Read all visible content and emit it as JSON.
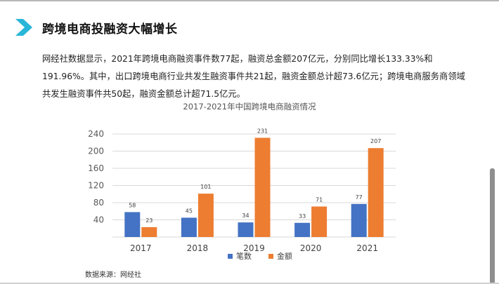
{
  "heading": {
    "title": "跨境电商投融资大幅增长",
    "icon": "chevron-right-icon",
    "icon_color": "#29b6d8"
  },
  "paragraph": {
    "text": "网经社数据显示，2021年跨境电商融资事件数77起，融资总金额207亿元，分别同比增长133.33%和191.96%。其中，出口跨境电商行业共发生融资事件共21起，融资金额总计超73.6亿元；跨境电商服务商领域共发生融资事件共50起，融资金额总计超71.5亿元。"
  },
  "source": {
    "text": "数据来源：网经社"
  },
  "chart_data": {
    "type": "bar",
    "title": "2017-2021年中国跨境电商融资情况",
    "categories": [
      "2017",
      "2018",
      "2019",
      "2020",
      "2021"
    ],
    "series": [
      {
        "name": "笔数",
        "values": [
          58,
          45,
          34,
          33,
          77
        ],
        "color": "#4472c4"
      },
      {
        "name": "金额",
        "values": [
          23,
          101,
          231,
          71,
          207
        ],
        "color": "#ed7d31"
      }
    ],
    "yticks": [
      40,
      80,
      120,
      160,
      200,
      240
    ],
    "ylim": [
      0,
      240
    ],
    "grid": true,
    "legend": "bottom"
  }
}
